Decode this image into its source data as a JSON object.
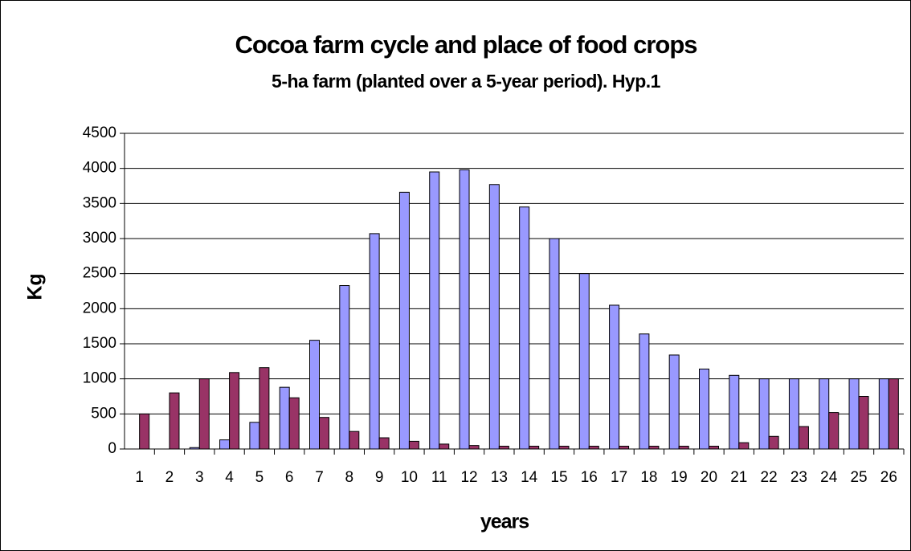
{
  "chart_data": {
    "type": "bar",
    "title": "Cocoa farm cycle and place of food crops",
    "subtitle": "5-ha farm (planted over a 5-year period). Hyp.1",
    "x_label": "years",
    "y_label": "Kg",
    "categories": [
      "1",
      "2",
      "3",
      "4",
      "5",
      "6",
      "7",
      "8",
      "9",
      "10",
      "11",
      "12",
      "13",
      "14",
      "15",
      "16",
      "17",
      "18",
      "19",
      "20",
      "21",
      "22",
      "23",
      "24",
      "25",
      "26"
    ],
    "series": [
      {
        "color": "#9999ff",
        "values": [
          0,
          0,
          20,
          130,
          380,
          880,
          1550,
          2330,
          3070,
          3660,
          3950,
          3980,
          3770,
          3450,
          3000,
          2500,
          2050,
          1640,
          1340,
          1140,
          1050,
          1000,
          1000,
          1000,
          1000,
          1000
        ]
      },
      {
        "color": "#993366",
        "values": [
          500,
          800,
          1000,
          1090,
          1160,
          730,
          450,
          250,
          160,
          110,
          70,
          50,
          40,
          40,
          40,
          40,
          40,
          40,
          40,
          40,
          90,
          180,
          320,
          520,
          750,
          1000
        ]
      }
    ],
    "ylim": [
      0,
      4500
    ],
    "yticks": [
      0,
      500,
      1000,
      1500,
      2000,
      2500,
      3000,
      3500,
      4000,
      4500
    ],
    "grid": true
  }
}
